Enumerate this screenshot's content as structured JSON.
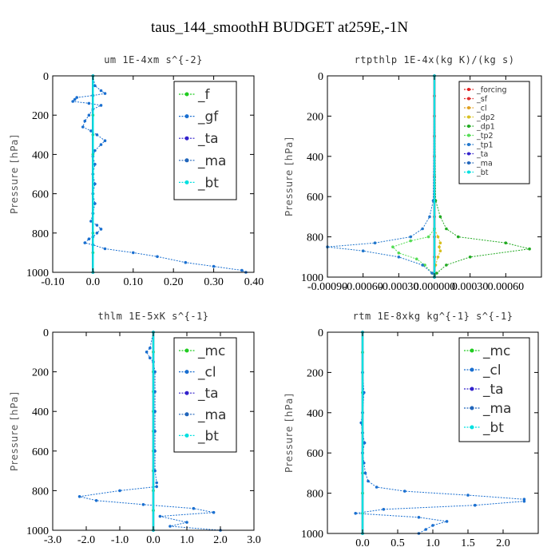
{
  "figure_title": "taus_144_smoothH  BUDGET at259E,-1N",
  "chart_data": [
    {
      "type": "line",
      "title": "um  1E-4xm s^{-2}",
      "xlabel": "",
      "ylabel": "Pressure [hPa]",
      "xlim": [
        -0.1,
        0.4
      ],
      "ylim": [
        1000,
        0
      ],
      "xticks": [
        "-0.10",
        "0.0",
        "0.10",
        "0.20",
        "0.30",
        "0.40"
      ],
      "xtick_values": [
        -0.1,
        0.0,
        0.1,
        0.2,
        0.3,
        0.4
      ],
      "yticks": [
        "0",
        "200",
        "400",
        "600",
        "800",
        "1000"
      ],
      "ytick_values": [
        0,
        200,
        400,
        600,
        800,
        1000
      ],
      "grid": false,
      "legend_style": "big",
      "series": [
        {
          "name": "_f",
          "color": "#22cc22",
          "y": [
            0,
            100,
            200,
            300,
            400,
            500,
            600,
            700,
            800,
            900,
            1000
          ],
          "x": [
            0,
            0,
            0,
            0,
            0,
            0,
            0,
            0,
            0,
            0,
            0
          ]
        },
        {
          "name": "_gf",
          "color": "#1a6fd0",
          "y": [
            0,
            50,
            75,
            90,
            100,
            110,
            120,
            130,
            140,
            150,
            170,
            200,
            230,
            260,
            280,
            300,
            330,
            350,
            380,
            410,
            450,
            500,
            550,
            600,
            650,
            700,
            740,
            760,
            780,
            800,
            820,
            830,
            850,
            860,
            880,
            900,
            920,
            950,
            970,
            990,
            1000
          ],
          "x": [
            0.0,
            0.005,
            0.02,
            0.03,
            0.0,
            -0.04,
            -0.045,
            -0.05,
            -0.01,
            0.02,
            0.0,
            -0.01,
            -0.02,
            -0.025,
            -0.005,
            0.01,
            0.03,
            0.02,
            0.005,
            0.0,
            0.005,
            0.0,
            0.005,
            0.0,
            0.005,
            0.0,
            -0.005,
            0.01,
            0.02,
            0.01,
            0.0,
            -0.01,
            -0.02,
            0.0,
            0.03,
            0.1,
            0.16,
            0.23,
            0.3,
            0.37,
            0.38
          ]
        },
        {
          "name": "_ta",
          "color": "#3322cc",
          "y": [
            0,
            1000
          ],
          "x": [
            0,
            0
          ]
        },
        {
          "name": "_ma",
          "color": "#2266bb",
          "y": [
            0,
            1000
          ],
          "x": [
            0,
            0
          ]
        },
        {
          "name": "_bt",
          "color": "#00e0e0",
          "y": [
            0,
            1000
          ],
          "x": [
            0,
            0
          ]
        }
      ]
    },
    {
      "type": "line",
      "title": "rtpthlp  1E-4x(kg K)/(kg s)",
      "xlabel": "",
      "ylabel": "Pressure [hPa]",
      "xlim": [
        -0.0009,
        0.0009
      ],
      "ylim": [
        1000,
        0
      ],
      "xticks": [
        "-0.00090",
        "-0.00060",
        "-0.00030",
        "0.000000",
        "0.00030",
        "0.00060"
      ],
      "xtick_values": [
        -0.0009,
        -0.0006,
        -0.0003,
        0.0,
        0.0003,
        0.0006
      ],
      "yticks": [
        "0",
        "200",
        "400",
        "600",
        "800",
        "1000"
      ],
      "ytick_values": [
        0,
        200,
        400,
        600,
        800,
        1000
      ],
      "grid": false,
      "legend_style": "small",
      "series": [
        {
          "name": "_forcing",
          "color": "#e02020",
          "y": [
            0,
            100,
            200,
            300,
            400,
            500,
            600,
            700,
            800,
            900,
            1000
          ],
          "x": [
            0,
            0,
            0,
            0,
            0,
            0,
            0,
            0,
            0,
            0,
            0
          ]
        },
        {
          "name": "_sf",
          "color": "#e03030",
          "y": [
            0,
            1000
          ],
          "x": [
            0,
            0
          ]
        },
        {
          "name": "_cl",
          "color": "#e0a020",
          "y": [
            0,
            1000
          ],
          "x": [
            0,
            0
          ]
        },
        {
          "name": "_dp2",
          "color": "#d8c020",
          "y": [
            0,
            760,
            800,
            830,
            850,
            870,
            900,
            940,
            980,
            1000
          ],
          "x": [
            0,
            0,
            3e-05,
            5e-05,
            4e-05,
            5e-05,
            3e-05,
            1e-05,
            0,
            0
          ]
        },
        {
          "name": "_dp1",
          "color": "#22aa22",
          "y": [
            0,
            620,
            700,
            760,
            800,
            830,
            860,
            900,
            940,
            980,
            1000
          ],
          "x": [
            0,
            1e-05,
            5e-05,
            0.0001,
            0.0002,
            0.0006,
            0.0008,
            0.0003,
            0.0001,
            2e-05,
            0
          ]
        },
        {
          "name": "_tp2",
          "color": "#55dd55",
          "y": [
            0,
            760,
            800,
            820,
            850,
            880,
            910,
            940,
            980,
            1000
          ],
          "x": [
            0,
            0,
            -5e-05,
            -0.0002,
            -0.00035,
            -0.0003,
            -0.00015,
            -8e-05,
            -2e-05,
            0
          ]
        },
        {
          "name": "_tp1",
          "color": "#2277cc",
          "y": [
            0,
            620,
            700,
            760,
            800,
            830,
            850,
            870,
            900,
            940,
            980,
            1000
          ],
          "x": [
            0,
            -1e-05,
            -4e-05,
            -0.0001,
            -0.0002,
            -0.0005,
            -0.0009,
            -0.0006,
            -0.0003,
            -0.0001,
            -2e-05,
            0
          ]
        },
        {
          "name": "_ta",
          "color": "#3322cc",
          "y": [
            0,
            1000
          ],
          "x": [
            0,
            0
          ]
        },
        {
          "name": "_ma",
          "color": "#2266bb",
          "y": [
            0,
            1000
          ],
          "x": [
            0,
            0
          ]
        },
        {
          "name": "_bt",
          "color": "#00e0e0",
          "y": [
            0,
            1000
          ],
          "x": [
            0,
            0
          ]
        }
      ]
    },
    {
      "type": "line",
      "title": "thlm  1E-5xK s^{-1}",
      "xlabel": "",
      "ylabel": "Pressure [hPa]",
      "xlim": [
        -3.0,
        3.0
      ],
      "ylim": [
        1000,
        0
      ],
      "xticks": [
        "-3.0",
        "-2.0",
        "-1.0",
        "0.0",
        "1.0",
        "2.0",
        "3.0"
      ],
      "xtick_values": [
        -3.0,
        -2.0,
        -1.0,
        0.0,
        1.0,
        2.0,
        3.0
      ],
      "yticks": [
        "0",
        "200",
        "400",
        "600",
        "800",
        "1000"
      ],
      "ytick_values": [
        0,
        200,
        400,
        600,
        800,
        1000
      ],
      "grid": false,
      "legend_style": "big",
      "series": [
        {
          "name": "_mc",
          "color": "#22cc22",
          "y": [
            0,
            100,
            200,
            300,
            400,
            500,
            600,
            700,
            800,
            900,
            1000
          ],
          "x": [
            0,
            0,
            0,
            0,
            0,
            0,
            0,
            0,
            0,
            0,
            0
          ]
        },
        {
          "name": "_cl",
          "color": "#1a6fd0",
          "y": [
            0,
            80,
            100,
            130,
            150,
            200,
            300,
            400,
            500,
            600,
            700,
            760,
            780,
            800,
            830,
            850,
            870,
            890,
            910,
            930,
            960,
            980,
            1000
          ],
          "x": [
            0,
            -0.1,
            -0.2,
            -0.1,
            0.0,
            0.05,
            0.05,
            0.05,
            0.05,
            0.05,
            0.05,
            0.1,
            0.1,
            -1.0,
            -2.2,
            -1.7,
            -0.3,
            1.2,
            1.8,
            0.2,
            1.0,
            0.5,
            2.0
          ]
        },
        {
          "name": "_ta",
          "color": "#3322cc",
          "y": [
            0,
            1000
          ],
          "x": [
            0,
            0
          ]
        },
        {
          "name": "_ma",
          "color": "#2266bb",
          "y": [
            0,
            1000
          ],
          "x": [
            0,
            0
          ]
        },
        {
          "name": "_bt",
          "color": "#00e0e0",
          "y": [
            0,
            1000
          ],
          "x": [
            0,
            0
          ]
        }
      ]
    },
    {
      "type": "line",
      "title": "rtm  1E-8xkg kg^{-1} s^{-1}",
      "xlabel": "",
      "ylabel": "Pressure [hPa]",
      "xlim": [
        -0.5,
        2.5
      ],
      "ylim": [
        1000,
        0
      ],
      "xticks": [
        "0.0",
        "0.5",
        "1.0",
        "1.5",
        "2.0"
      ],
      "xtick_values": [
        0.0,
        0.5,
        1.0,
        1.5,
        2.0
      ],
      "yticks": [
        "0",
        "200",
        "400",
        "600",
        "800",
        "1000"
      ],
      "ytick_values": [
        0,
        200,
        400,
        600,
        800,
        1000
      ],
      "grid": false,
      "legend_style": "big",
      "series": [
        {
          "name": "_mc",
          "color": "#22cc22",
          "y": [
            0,
            100,
            200,
            300,
            400,
            500,
            600,
            700,
            800,
            900,
            1000
          ],
          "x": [
            0,
            0,
            0,
            0,
            0,
            0,
            0,
            0,
            0,
            0,
            0
          ]
        },
        {
          "name": "_cl",
          "color": "#1a6fd0",
          "y": [
            0,
            200,
            300,
            400,
            450,
            500,
            550,
            600,
            650,
            700,
            740,
            770,
            790,
            810,
            830,
            840,
            860,
            880,
            900,
            920,
            940,
            960,
            980,
            1000
          ],
          "x": [
            0,
            0.0,
            0.02,
            0.0,
            -0.02,
            0.0,
            0.03,
            0.0,
            0.02,
            0.04,
            0.08,
            0.2,
            0.6,
            1.5,
            2.3,
            2.3,
            1.6,
            0.3,
            -0.1,
            0.8,
            1.2,
            1.0,
            0.9,
            0.8
          ]
        },
        {
          "name": "_ta",
          "color": "#3322cc",
          "y": [
            0,
            1000
          ],
          "x": [
            0,
            0
          ]
        },
        {
          "name": "_ma",
          "color": "#2266bb",
          "y": [
            0,
            1000
          ],
          "x": [
            0,
            0
          ]
        },
        {
          "name": "_bt",
          "color": "#00e0e0",
          "y": [
            0,
            1000
          ],
          "x": [
            0,
            0
          ]
        }
      ]
    }
  ]
}
